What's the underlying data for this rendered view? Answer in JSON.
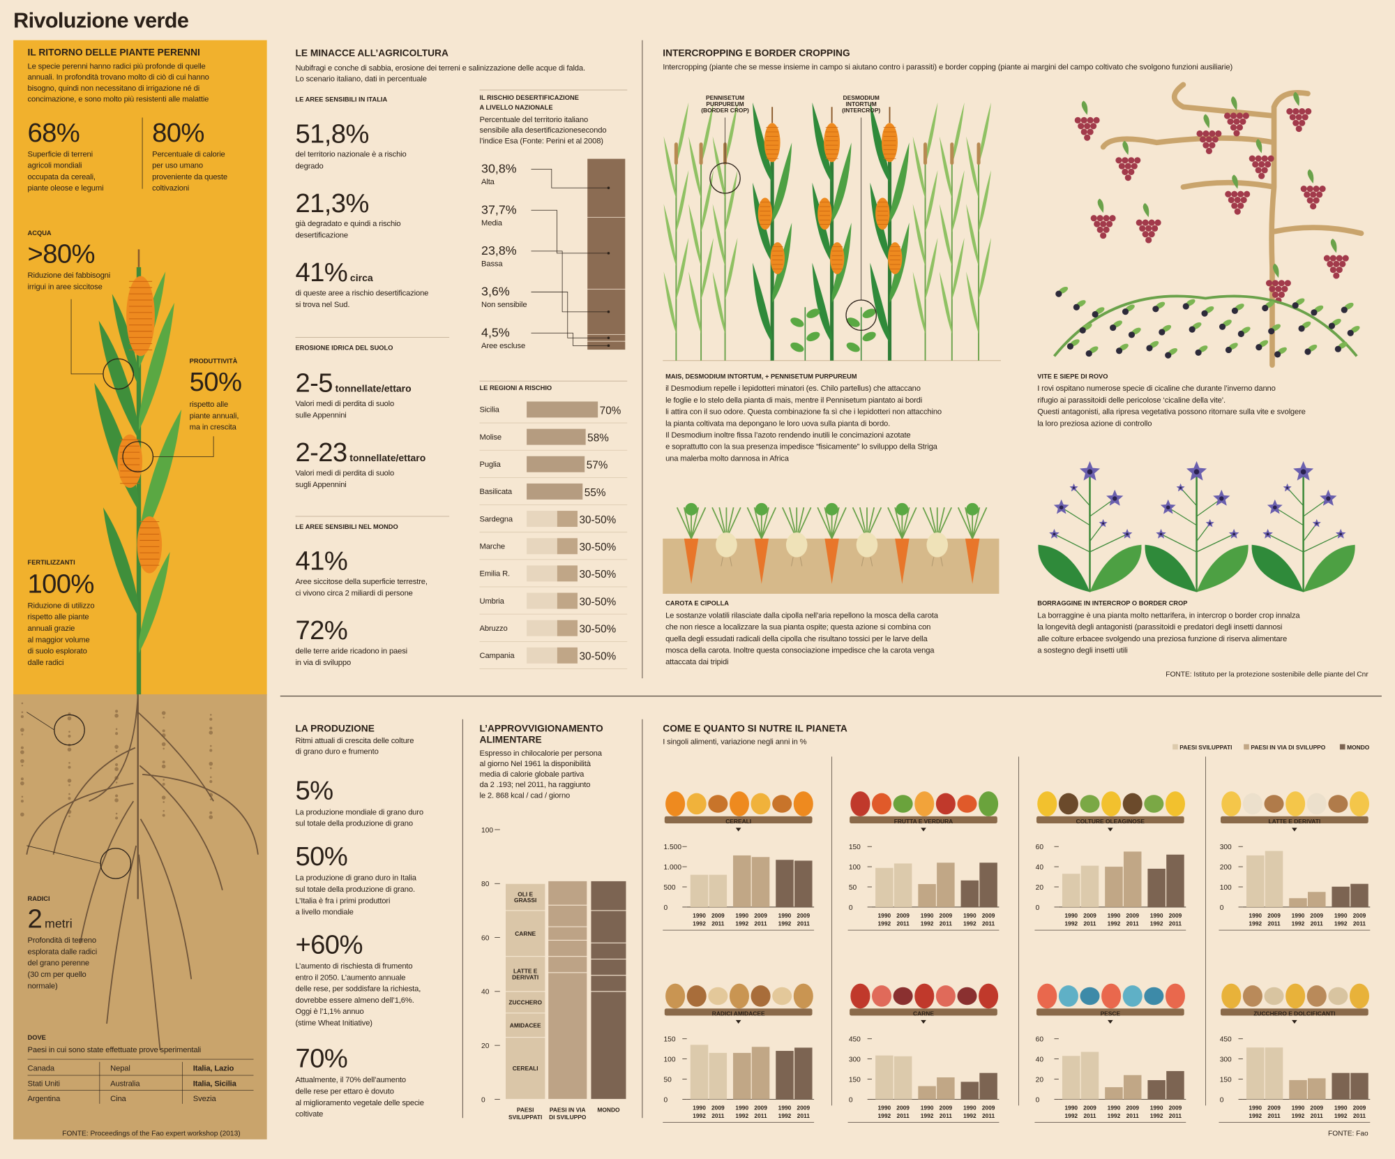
{
  "title": "Rivoluzione verde",
  "perenni": {
    "heading": "IL RITORNO DELLE PIANTE PERENNI",
    "intro": [
      "Le specie perenni hanno radici più profonde di quelle",
      "annuali. In profondità trovano molto di ciò di cui hanno",
      "bisogno, quindi non necessitano di irrigazione né di",
      "concimazione, e sono molto più resistenti alle malattie"
    ],
    "stats": [
      {
        "value": "68%",
        "text": [
          "Superficie di terreni",
          "agricoli mondiali",
          "occupata da cereali,",
          "piante oleose e legumi"
        ]
      },
      {
        "value": "80%",
        "text": [
          "Percentuale di calorie",
          "per uso umano",
          "proveniente da queste",
          "coltivazioni"
        ]
      }
    ],
    "acqua": {
      "label": "ACQUA",
      "value": ">80%",
      "text": [
        "Riduzione dei fabbisogni",
        "irrigui in aree siccitose"
      ]
    },
    "produttivita": {
      "label": "PRODUTTIVITÀ",
      "value": "50%",
      "text": [
        "rispetto alle",
        "piante annuali,",
        "ma in crescita"
      ]
    },
    "fertilizzanti": {
      "label": "FERTILIZZANTI",
      "value": "100%",
      "text": [
        "Riduzione di utilizzo",
        "rispetto alle piante",
        "annuali grazie",
        "al maggior volume",
        "di suolo esplorato",
        "dalle radici"
      ]
    },
    "radici": {
      "label": "RADICI",
      "value": "2",
      "unit": "metri",
      "text": [
        "Profondità di terreno",
        "esplorata dalle radici",
        "del grano perenne",
        "(30 cm per quello",
        "normale)"
      ]
    },
    "dove": {
      "label": "DOVE",
      "text": "Paesi in cui sono state effettuate prove sperimentali",
      "places": [
        [
          "Canada",
          "Stati Uniti",
          "Argentina"
        ],
        [
          "Nepal",
          "Australia",
          "Cina"
        ],
        [
          "Italia, Lazio",
          "Italia, Sicilia",
          "Svezia"
        ]
      ]
    },
    "source": "FONTE: Proceedings of the Fao expert workshop (2013)"
  },
  "minacce": {
    "heading": "LE MINACCE ALL’AGRICOLTURA",
    "subtitle": [
      "Nubifragi e conche di sabbia, erosione dei terreni e salinizzazione delle acque di falda.",
      "Lo scenario italiano, dati in percentuale"
    ],
    "italia": {
      "heading": "LE AREE SENSIBILI IN ITALIA",
      "stats": [
        {
          "value": "51,8%",
          "text": [
            "del territorio nazionale è a rischio",
            "degrado"
          ]
        },
        {
          "value": "21,3%",
          "text": [
            "già degradato e quindi a rischio",
            "desertificazione"
          ]
        },
        {
          "value": "41%",
          "suffix": "circa",
          "text": [
            "di queste aree a rischio desertificazione",
            "si trova nel Sud."
          ]
        }
      ]
    },
    "erosione": {
      "heading": "EROSIONE IDRICA DEL SUOLO",
      "stats": [
        {
          "value": "2-5",
          "suffix": "tonnellate/ettaro",
          "text": [
            "Valori medi di perdita di suolo",
            "sulle Appennini"
          ]
        },
        {
          "value": "2-23",
          "suffix": "tonnellate/ettaro",
          "text": [
            "Valori medi di perdita di suolo",
            "sugli Appennini"
          ]
        }
      ]
    },
    "mondo": {
      "heading": "LE AREE SENSIBILI NEL MONDO",
      "stats": [
        {
          "value": "41%",
          "text": [
            "Aree siccitose della superficie terrestre,",
            "ci vivono circa 2 miliardi di persone"
          ]
        },
        {
          "value": "72%",
          "text": [
            "delle terre aride ricadono in paesi",
            "in via di sviluppo"
          ]
        }
      ]
    }
  },
  "intercropping": {
    "heading": "INTERCROPPING E BORDER CROPPING",
    "subtitle": "Intercropping (piante che se messe insieme in campo si aiutano contro i parassiti) e border copping (piante ai margini del campo coltivato che svolgono funzioni ausiliarie)",
    "labels": [
      [
        "PENNISETUM",
        "PURPUREUM",
        "(BORDER CROP)"
      ],
      [
        "DESMODIUM",
        "INTORTUM",
        "(INTERCROP)"
      ]
    ],
    "captions": [
      {
        "title": "MAIS, DESMODIUM INTORTUM, + PENNISETUM PURPUREUM",
        "text": [
          "il Desmodium repelle i lepidotteri minatori (es. Chilo partellus) che attaccano",
          "le foglie e lo stelo della pianta di mais, mentre il Pennisetum piantato ai bordi",
          "li attira con il suo odore. Questa combinazione fa sì che i lepidotteri non attacchino",
          "la pianta coltivata ma depongano le loro uova sulla pianta di bordo.",
          "Il Desmodium inoltre fissa l’azoto rendendo inutili le concimazioni azotate",
          "e soprattutto con la sua presenza impedisce “fisicamente” lo sviluppo della Striga",
          "una malerba molto dannosa in Africa"
        ]
      },
      {
        "title": "VITE E SIEPE DI ROVO",
        "text": [
          "I rovi ospitano numerose specie di cicaline che durante l’inverno danno",
          "rifugio ai parassitoidi delle pericolose ‘cicaline della vite’.",
          "Questi antagonisti, alla ripresa vegetativa possono ritornare sulla vite e svolgere",
          "la loro preziosa azione di controllo"
        ]
      },
      {
        "title": "CAROTA E CIPOLLA",
        "text": [
          "Le sostanze volatili rilasciate dalla cipolla nell’aria repellono la mosca della carota",
          "che non riesce a localizzare la sua pianta ospite; questa azione si combina con",
          "quella degli essudati radicali della cipolla che risultano tossici per le larve della",
          "mosca della carota. Inoltre questa consociazione impedisce che la carota venga",
          "attaccata dai tripidi"
        ]
      },
      {
        "title": "BORRAGGINE IN INTERCROP O BORDER CROP",
        "text": [
          "La borraggine è una pianta molto nettarifera, in intercrop o border crop innalza",
          "la longevità degli antagonisti (parassitoidi e predatori degli insetti dannosi",
          "alle colture erbacee svolgendo una preziosa funzione di riserva alimentare",
          "a sostegno degli insetti utili"
        ]
      }
    ],
    "source": "FONTE: Istituto per la protezione sostenibile delle piante del Cnr"
  },
  "produzione": {
    "heading": "LA PRODUZIONE",
    "subtitle": [
      "Ritmi attuali di crescita delle colture",
      "di grano duro e frumento"
    ],
    "stats": [
      {
        "value": "5%",
        "text": [
          "La produzione mondiale di grano duro",
          "sul totale della produzione di grano"
        ]
      },
      {
        "value": "50%",
        "text": [
          "La produzione di grano duro in Italia",
          "sul totale della produzione di grano.",
          "L’Italia è fra i primi produttori",
          "a livello mondiale"
        ]
      },
      {
        "value": "+60%",
        "text": [
          "L’aumento di rischiesta di frumento",
          "entro il 2050. L’aumento annuale",
          "delle rese, per soddisfare la richiesta,",
          "dovrebbe essere almeno dell’1,6%.",
          "Oggi è l’1,1% annuo",
          "(stime Wheat Initiative)"
        ]
      },
      {
        "value": "70%",
        "text": [
          "Attualmente, il 70% dell’aumento",
          "delle rese per ettaro è dovuto",
          "al miglioramento vegetale delle specie",
          "coltivate"
        ]
      }
    ]
  },
  "nutre": {
    "heading": "COME E QUANTO SI NUTRE IL PIANETA",
    "subtitle": "I singoli alimenti, variazione negli anni in %",
    "legend": [
      {
        "name": "PAESI SVILUPPATI",
        "color": "#dccaac"
      },
      {
        "name": "PAESI IN VIA DI SVILUPPO",
        "color": "#c1a786"
      },
      {
        "name": "MONDO",
        "color": "#7c6452"
      }
    ],
    "source": "FONTE: Fao"
  },
  "chart_data": [
    {
      "type": "stacked-column",
      "title": [
        "IL RISCHIO DESERTIFICAZIONE",
        "A LIVELLO NAZIONALE"
      ],
      "subtitle": [
        "Percentuale del territorio italiano",
        "sensibile alla desertificazionesecondo",
        "l’indice Esa (Fonte: Perini et al 2008)"
      ],
      "categories": [
        "Alta",
        "Media",
        "Bassa",
        "Non sensibile",
        "Aree escluse"
      ],
      "values": [
        30.8,
        37.7,
        23.8,
        3.6,
        4.5
      ],
      "value_labels": [
        "30,8%",
        "37,7%",
        "23,8%",
        "3,6%",
        "4,5%"
      ],
      "color": "#8b6c53"
    },
    {
      "type": "range-bar",
      "title": "LE REGIONI A RISCHIO",
      "categories": [
        "Sicilia",
        "Molise",
        "Puglia",
        "Basilicata",
        "Sardegna",
        "Marche",
        "Emilia R.",
        "Umbria",
        "Abruzzo",
        "Campania"
      ],
      "values": [
        70,
        58,
        57,
        55,
        50,
        50,
        50,
        50,
        50,
        50
      ],
      "low": [
        null,
        null,
        null,
        null,
        30,
        30,
        30,
        30,
        30,
        30
      ],
      "value_labels": [
        "70%",
        "58%",
        "57%",
        "55%",
        "30-50%",
        "30-50%",
        "30-50%",
        "30-50%",
        "30-50%",
        "30-50%"
      ],
      "color": "#b59c80",
      "base_color": "#e7d6be",
      "range_color": "#c0a687"
    },
    {
      "type": "stacked-bar",
      "title": [
        "L’APPROVVIGIONAMENTO",
        "ALIMENTARE"
      ],
      "subtitle": [
        "Espresso in chilocalorie per persona",
        "al giorno  Nel 1961 la disponibilità",
        "media di calorie globale partiva",
        "da 2 .193; nel 2011, ha raggiunto",
        "le 2. 868 kcal / cad / giorno"
      ],
      "categories": [
        [
          "PAESI",
          "SVILUPPATI"
        ],
        [
          "PAESI IN VIA",
          "DI SVILUPPO"
        ],
        [
          "MONDO"
        ]
      ],
      "colors": [
        "#dac6a8",
        "#bda386",
        "#7c6452"
      ],
      "ylim": [
        0,
        100
      ],
      "yticks": [
        0,
        20,
        40,
        60,
        80,
        100
      ],
      "series": [
        {
          "name": [
            "CEREALI"
          ],
          "values": [
            23,
            47,
            40
          ]
        },
        {
          "name": [
            "AMIDACEE"
          ],
          "values": [
            9,
            6,
            6
          ]
        },
        {
          "name": [
            "ZUCCHERO"
          ],
          "values": [
            8,
            6,
            6
          ]
        },
        {
          "name": [
            "LATTE E",
            "DERIVATI"
          ],
          "values": [
            13,
            5,
            6
          ]
        },
        {
          "name": [
            "CARNE"
          ],
          "values": [
            17,
            8,
            12
          ]
        },
        {
          "name": [
            "OLI E",
            "GRASSI"
          ],
          "values": [
            10,
            9,
            11
          ]
        }
      ]
    },
    {
      "type": "grouped-bar",
      "title": "CEREALI",
      "categories": [
        [
          "1990",
          "1992"
        ],
        [
          "2009",
          "2011"
        ]
      ],
      "ylim": [
        0,
        1500
      ],
      "yticks": [
        0,
        500,
        {
          "value": 1000,
          "label": "1.000"
        },
        {
          "value": 1500,
          "label": "1.500"
        }
      ],
      "values": [
        [
          800,
          800
        ],
        [
          1280,
          1240
        ],
        [
          1170,
          1150
        ]
      ]
    },
    {
      "type": "grouped-bar",
      "title": "FRUTTA E VERDURA",
      "categories": [
        [
          "1990",
          "1992"
        ],
        [
          "2009",
          "2011"
        ]
      ],
      "ylim": [
        0,
        150
      ],
      "yticks": [
        0,
        50,
        100,
        150
      ],
      "values": [
        [
          97,
          108
        ],
        [
          57,
          110
        ],
        [
          66,
          110
        ]
      ]
    },
    {
      "type": "grouped-bar",
      "title": "COLTURE OLEAGINOSE",
      "categories": [
        [
          "1990",
          "1992"
        ],
        [
          "2009",
          "2011"
        ]
      ],
      "ylim": [
        0,
        60
      ],
      "yticks": [
        0,
        20,
        40,
        60
      ],
      "values": [
        [
          33,
          41
        ],
        [
          40,
          55
        ],
        [
          38,
          52
        ]
      ]
    },
    {
      "type": "grouped-bar",
      "title": "LATTE E DERIVATI",
      "categories": [
        [
          "1990",
          "1992"
        ],
        [
          "2009",
          "2011"
        ]
      ],
      "ylim": [
        0,
        300
      ],
      "yticks": [
        0,
        100,
        200,
        300
      ],
      "values": [
        [
          256,
          278
        ],
        [
          44,
          75
        ],
        [
          101,
          115
        ]
      ]
    },
    {
      "type": "grouped-bar",
      "title": "RADICI AMIDACEE",
      "categories": [
        [
          "1990",
          "1992"
        ],
        [
          "2009",
          "2011"
        ]
      ],
      "ylim": [
        0,
        150
      ],
      "yticks": [
        0,
        50,
        100,
        150
      ],
      "values": [
        [
          135,
          115
        ],
        [
          115,
          130
        ],
        [
          120,
          128
        ]
      ]
    },
    {
      "type": "grouped-bar",
      "title": "CARNE",
      "categories": [
        [
          "1990",
          "1992"
        ],
        [
          "2009",
          "2011"
        ]
      ],
      "ylim": [
        0,
        450
      ],
      "yticks": [
        0,
        150,
        300,
        450
      ],
      "values": [
        [
          326,
          320
        ],
        [
          98,
          163
        ],
        [
          130,
          196
        ]
      ]
    },
    {
      "type": "grouped-bar",
      "title": "PESCE",
      "categories": [
        [
          "1990",
          "1992"
        ],
        [
          "2009",
          "2011"
        ]
      ],
      "ylim": [
        0,
        60
      ],
      "yticks": [
        0,
        20,
        40,
        60
      ],
      "values": [
        [
          43,
          47
        ],
        [
          12,
          24
        ],
        [
          19,
          28
        ]
      ]
    },
    {
      "type": "grouped-bar",
      "title": "ZUCCHERO E DOLCIFICANTI",
      "categories": [
        [
          "1990",
          "1992"
        ],
        [
          "2009",
          "2011"
        ]
      ],
      "ylim": [
        0,
        450
      ],
      "yticks": [
        0,
        150,
        300,
        450
      ],
      "values": [
        [
          385,
          385
        ],
        [
          143,
          156
        ],
        [
          196,
          196
        ]
      ]
    }
  ]
}
